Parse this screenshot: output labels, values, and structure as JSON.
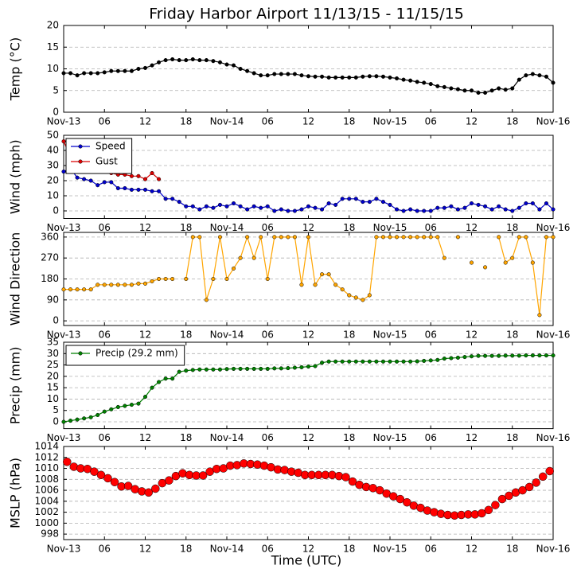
{
  "title": "Friday Harbor Airport 11/13/15 - 11/15/15",
  "xlabel": "Time (UTC)",
  "chart_data": [
    {
      "type": "line",
      "ylabel": "Temp (°C)",
      "xlim": [
        0,
        72
      ],
      "ylim": [
        0,
        20
      ],
      "yticks": [
        0,
        5,
        10,
        15,
        20
      ],
      "grid": true,
      "xticks": [
        {
          "value": 0,
          "label": "Nov-13"
        },
        {
          "value": 6,
          "label": "06"
        },
        {
          "value": 12,
          "label": "12"
        },
        {
          "value": 18,
          "label": "18"
        },
        {
          "value": 24,
          "label": "Nov-14"
        },
        {
          "value": 30,
          "label": "06"
        },
        {
          "value": 36,
          "label": "12"
        },
        {
          "value": 42,
          "label": "18"
        },
        {
          "value": 48,
          "label": "Nov-15"
        },
        {
          "value": 54,
          "label": "06"
        },
        {
          "value": 60,
          "label": "12"
        },
        {
          "value": 66,
          "label": "18"
        },
        {
          "value": 72,
          "label": "Nov-16"
        }
      ],
      "x": [
        0,
        1,
        2,
        3,
        4,
        5,
        6,
        7,
        8,
        9,
        10,
        11,
        12,
        13,
        14,
        15,
        16,
        17,
        18,
        19,
        20,
        21,
        22,
        23,
        24,
        25,
        26,
        27,
        28,
        29,
        30,
        31,
        32,
        33,
        34,
        35,
        36,
        37,
        38,
        39,
        40,
        41,
        42,
        43,
        44,
        45,
        46,
        47,
        48,
        49,
        50,
        51,
        52,
        53,
        54,
        55,
        56,
        57,
        58,
        59,
        60,
        61,
        62,
        63,
        64,
        65,
        66,
        67,
        68,
        69,
        70,
        71,
        72
      ],
      "series": [
        {
          "color": "#000000",
          "values": [
            9,
            9,
            8.5,
            9,
            9,
            9,
            9.2,
            9.5,
            9.5,
            9.5,
            9.5,
            10,
            10.2,
            10.8,
            11.5,
            12,
            12.2,
            12,
            12,
            12.2,
            12,
            12,
            11.8,
            11.5,
            11,
            10.8,
            10,
            9.5,
            9,
            8.5,
            8.5,
            8.8,
            8.8,
            8.8,
            8.8,
            8.5,
            8.3,
            8.2,
            8.2,
            8,
            8,
            8,
            8,
            8,
            8.2,
            8.3,
            8.3,
            8.2,
            8,
            7.8,
            7.5,
            7.3,
            7,
            6.8,
            6.5,
            6,
            5.8,
            5.5,
            5.3,
            5,
            5,
            4.5,
            4.5,
            5,
            5.5,
            5.2,
            5.5,
            7.5,
            8.5,
            8.8,
            8.5,
            8.2,
            6.8
          ]
        }
      ]
    },
    {
      "type": "line",
      "ylabel": "Wind (mph)",
      "xlim": [
        0,
        72
      ],
      "ylim": [
        -5,
        50
      ],
      "yticks": [
        0,
        10,
        20,
        30,
        40,
        50
      ],
      "grid": true,
      "legend": "upper left",
      "xticks": [
        {
          "value": 0,
          "label": "Nov-13"
        },
        {
          "value": 6,
          "label": "06"
        },
        {
          "value": 12,
          "label": "12"
        },
        {
          "value": 18,
          "label": "18"
        },
        {
          "value": 24,
          "label": "Nov-14"
        },
        {
          "value": 30,
          "label": "06"
        },
        {
          "value": 36,
          "label": "12"
        },
        {
          "value": 42,
          "label": "18"
        },
        {
          "value": 48,
          "label": "Nov-15"
        },
        {
          "value": 54,
          "label": "06"
        },
        {
          "value": 60,
          "label": "12"
        },
        {
          "value": 66,
          "label": "18"
        },
        {
          "value": 72,
          "label": "Nov-16"
        }
      ],
      "x": [
        0,
        1,
        2,
        3,
        4,
        5,
        6,
        7,
        8,
        9,
        10,
        11,
        12,
        13,
        14,
        15,
        16,
        17,
        18,
        19,
        20,
        21,
        22,
        23,
        24,
        25,
        26,
        27,
        28,
        29,
        30,
        31,
        32,
        33,
        34,
        35,
        36,
        37,
        38,
        39,
        40,
        41,
        42,
        43,
        44,
        45,
        46,
        47,
        48,
        49,
        50,
        51,
        52,
        53,
        54,
        55,
        56,
        57,
        58,
        59,
        60,
        61,
        62,
        63,
        64,
        65,
        66,
        67,
        68,
        69,
        70,
        71,
        72
      ],
      "series": [
        {
          "name": "Speed",
          "color": "#0000cc",
          "values": [
            26,
            28,
            22,
            21,
            20,
            17,
            19,
            19,
            15,
            15,
            14,
            14,
            14,
            13,
            13,
            8,
            8,
            6,
            3,
            3,
            1,
            3,
            2,
            4,
            3,
            5,
            3,
            1,
            3,
            2,
            3,
            0,
            1,
            0,
            0,
            1,
            3,
            2,
            1,
            5,
            4,
            8,
            8,
            8,
            6,
            6,
            8,
            6,
            4,
            1,
            0,
            1,
            0,
            0,
            0,
            2,
            2,
            3,
            1,
            2,
            5,
            4,
            3,
            1,
            3,
            1,
            0,
            2,
            5,
            5,
            1,
            5,
            1
          ]
        },
        {
          "name": "Gust",
          "color": "#dd0000",
          "x": [
            0,
            1,
            2,
            3,
            4,
            5,
            6,
            7,
            8,
            9,
            10,
            11,
            12,
            13,
            14
          ],
          "values": [
            46,
            36,
            33,
            31,
            31,
            29,
            27,
            25,
            24,
            24,
            23,
            23,
            21,
            25,
            21
          ]
        }
      ]
    },
    {
      "type": "line",
      "ylabel": "Wind Direction",
      "xlim": [
        0,
        72
      ],
      "ylim": [
        -20,
        380
      ],
      "yticks": [
        0,
        90,
        180,
        270,
        360
      ],
      "grid": true,
      "xticks": [
        {
          "value": 0,
          "label": "Nov-13"
        },
        {
          "value": 6,
          "label": "06"
        },
        {
          "value": 12,
          "label": "12"
        },
        {
          "value": 18,
          "label": "18"
        },
        {
          "value": 24,
          "label": "Nov-14"
        },
        {
          "value": 30,
          "label": "06"
        },
        {
          "value": 36,
          "label": "12"
        },
        {
          "value": 42,
          "label": "18"
        },
        {
          "value": 48,
          "label": "Nov-15"
        },
        {
          "value": 54,
          "label": "06"
        },
        {
          "value": 60,
          "label": "12"
        },
        {
          "value": 66,
          "label": "18"
        },
        {
          "value": 72,
          "label": "Nov-16"
        }
      ],
      "x": [
        0,
        1,
        2,
        3,
        4,
        5,
        6,
        7,
        8,
        9,
        10,
        11,
        12,
        13,
        14,
        15,
        16,
        17,
        18,
        19,
        20,
        21,
        22,
        23,
        24,
        25,
        26,
        27,
        28,
        29,
        30,
        31,
        32,
        33,
        34,
        35,
        36,
        37,
        38,
        39,
        40,
        41,
        42,
        43,
        44,
        45,
        46,
        47,
        48,
        49,
        50,
        51,
        52,
        53,
        54,
        55,
        56,
        57,
        58,
        59,
        60,
        61,
        62,
        63,
        64,
        65,
        66,
        67,
        68,
        69,
        70,
        71,
        72
      ],
      "series": [
        {
          "color": "#ffa500",
          "values": [
            135,
            135,
            135,
            135,
            135,
            155,
            155,
            155,
            155,
            155,
            155,
            160,
            160,
            170,
            180,
            180,
            180,
            null,
            180,
            360,
            360,
            90,
            180,
            360,
            180,
            225,
            270,
            360,
            270,
            360,
            180,
            360,
            360,
            360,
            360,
            155,
            360,
            155,
            200,
            200,
            155,
            135,
            110,
            100,
            90,
            110,
            360,
            360,
            360,
            360,
            360,
            360,
            360,
            360,
            360,
            360,
            270,
            null,
            360,
            null,
            250,
            null,
            230,
            null,
            360,
            250,
            270,
            360,
            360,
            250,
            25,
            360,
            360
          ]
        }
      ]
    },
    {
      "type": "line",
      "ylabel": "Precip (mm)",
      "xlim": [
        0,
        72
      ],
      "ylim": [
        -3,
        35
      ],
      "yticks": [
        0,
        5,
        10,
        15,
        20,
        25,
        30,
        35
      ],
      "grid": true,
      "legend": "upper left",
      "xticks": [
        {
          "value": 0,
          "label": "Nov-13"
        },
        {
          "value": 6,
          "label": "06"
        },
        {
          "value": 12,
          "label": "12"
        },
        {
          "value": 18,
          "label": "18"
        },
        {
          "value": 24,
          "label": "Nov-14"
        },
        {
          "value": 30,
          "label": "06"
        },
        {
          "value": 36,
          "label": "12"
        },
        {
          "value": 42,
          "label": "18"
        },
        {
          "value": 48,
          "label": "Nov-15"
        },
        {
          "value": 54,
          "label": "06"
        },
        {
          "value": 60,
          "label": "12"
        },
        {
          "value": 66,
          "label": "18"
        },
        {
          "value": 72,
          "label": "Nov-16"
        }
      ],
      "x": [
        0,
        1,
        2,
        3,
        4,
        5,
        6,
        7,
        8,
        9,
        10,
        11,
        12,
        13,
        14,
        15,
        16,
        17,
        18,
        19,
        20,
        21,
        22,
        23,
        24,
        25,
        26,
        27,
        28,
        29,
        30,
        31,
        32,
        33,
        34,
        35,
        36,
        37,
        38,
        39,
        40,
        41,
        42,
        43,
        44,
        45,
        46,
        47,
        48,
        49,
        50,
        51,
        52,
        53,
        54,
        55,
        56,
        57,
        58,
        59,
        60,
        61,
        62,
        63,
        64,
        65,
        66,
        67,
        68,
        69,
        70,
        71,
        72
      ],
      "series": [
        {
          "name": "Precip (29.2 mm)",
          "color": "#008000",
          "values": [
            0,
            0.5,
            1,
            1.5,
            2,
            3,
            4.5,
            5.5,
            6.5,
            7,
            7.5,
            8,
            11,
            15,
            17.5,
            19,
            19,
            22,
            22.5,
            22.8,
            23,
            23,
            23,
            23,
            23.2,
            23.3,
            23.3,
            23.3,
            23.3,
            23.3,
            23.3,
            23.5,
            23.5,
            23.6,
            23.8,
            24,
            24.3,
            24.5,
            26,
            26.5,
            26.5,
            26.5,
            26.5,
            26.5,
            26.5,
            26.5,
            26.5,
            26.5,
            26.5,
            26.5,
            26.5,
            26.5,
            26.6,
            26.8,
            27,
            27.2,
            27.8,
            28,
            28.2,
            28.5,
            28.8,
            29,
            29,
            29,
            29,
            29.1,
            29.1,
            29.1,
            29.2,
            29.2,
            29.2,
            29.2,
            29.2
          ]
        }
      ]
    },
    {
      "type": "scatter",
      "ylabel": "MSLP (hPa)",
      "xlim": [
        0,
        72
      ],
      "ylim": [
        997,
        1014
      ],
      "yticks": [
        998,
        1000,
        1002,
        1004,
        1006,
        1008,
        1010,
        1012,
        1014
      ],
      "grid": true,
      "xticks": [
        {
          "value": 0,
          "label": "Nov-13"
        },
        {
          "value": 6,
          "label": "06"
        },
        {
          "value": 12,
          "label": "12"
        },
        {
          "value": 18,
          "label": "18"
        },
        {
          "value": 24,
          "label": "Nov-14"
        },
        {
          "value": 30,
          "label": "06"
        },
        {
          "value": 36,
          "label": "12"
        },
        {
          "value": 42,
          "label": "18"
        },
        {
          "value": 48,
          "label": "Nov-15"
        },
        {
          "value": 54,
          "label": "06"
        },
        {
          "value": 60,
          "label": "12"
        },
        {
          "value": 66,
          "label": "18"
        },
        {
          "value": 72,
          "label": "Nov-16"
        }
      ],
      "x": [
        0.5,
        1.5,
        2.5,
        3.5,
        4.5,
        5.5,
        6.5,
        7.5,
        8.5,
        9.5,
        10.5,
        11.5,
        12.5,
        13.5,
        14.5,
        15.5,
        16.5,
        17.5,
        18.5,
        19.5,
        20.5,
        21.5,
        22.5,
        23.5,
        24.5,
        25.5,
        26.5,
        27.5,
        28.5,
        29.5,
        30.5,
        31.5,
        32.5,
        33.5,
        34.5,
        35.5,
        36.5,
        37.5,
        38.5,
        39.5,
        40.5,
        41.5,
        42.5,
        43.5,
        44.5,
        45.5,
        46.5,
        47.5,
        48.5,
        49.5,
        50.5,
        51.5,
        52.5,
        53.5,
        54.5,
        55.5,
        56.5,
        57.5,
        58.5,
        59.5,
        60.5,
        61.5,
        62.5,
        63.5,
        64.5,
        65.5,
        66.5,
        67.5,
        68.5,
        69.5,
        70.5,
        71.5
      ],
      "series": [
        {
          "color": "#ff0000",
          "values": [
            1011.2,
            1010.3,
            1010,
            1009.9,
            1009.4,
            1008.8,
            1008.2,
            1007.5,
            1006.7,
            1006.8,
            1006.2,
            1005.8,
            1005.6,
            1006.3,
            1007.3,
            1007.8,
            1008.6,
            1009.1,
            1008.8,
            1008.7,
            1008.7,
            1009.4,
            1009.9,
            1010,
            1010.5,
            1010.6,
            1010.9,
            1010.8,
            1010.7,
            1010.5,
            1010.2,
            1009.8,
            1009.7,
            1009.4,
            1009.2,
            1008.8,
            1008.8,
            1008.8,
            1008.8,
            1008.8,
            1008.6,
            1008.4,
            1007.6,
            1007,
            1006.6,
            1006.4,
            1006,
            1005.4,
            1004.9,
            1004.4,
            1003.8,
            1003.2,
            1002.8,
            1002.3,
            1002,
            1001.7,
            1001.5,
            1001.4,
            1001.5,
            1001.6,
            1001.6,
            1001.8,
            1002.4,
            1003.3,
            1004.4,
            1005,
            1005.6,
            1006,
            1006.6,
            1007.4,
            1008.5,
            1009.5
          ]
        }
      ]
    }
  ]
}
